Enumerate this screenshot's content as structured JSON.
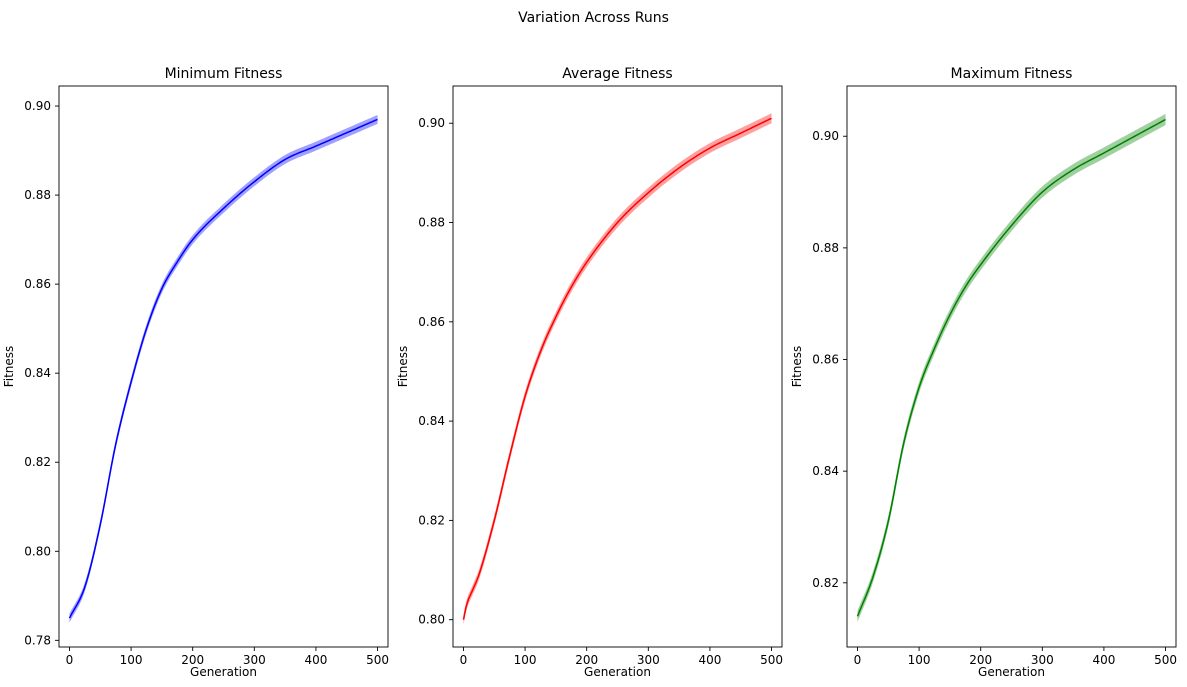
{
  "figure": {
    "suptitle": "Variation Across Runs"
  },
  "chart_data": [
    {
      "type": "line",
      "title": "Minimum Fitness",
      "xlabel": "Generation",
      "ylabel": "Fitness",
      "xlim": [
        -17,
        517
      ],
      "ylim": [
        0.7785,
        0.9045
      ],
      "xticks": [
        0,
        100,
        200,
        300,
        400,
        500
      ],
      "yticks": [
        0.78,
        0.8,
        0.82,
        0.84,
        0.86,
        0.88,
        0.9
      ],
      "ytick_labels": [
        "0.78",
        "0.80",
        "0.82",
        "0.84",
        "0.86",
        "0.88",
        "0.90"
      ],
      "line_color": "#0000ff",
      "band_color": "#8080ff",
      "band_halfwidth": 0.001,
      "series": [
        {
          "x": [
            0,
            25,
            50,
            75,
            100,
            125,
            150,
            175,
            200,
            250,
            300,
            350,
            400,
            450,
            500
          ],
          "y": [
            0.785,
            0.792,
            0.806,
            0.824,
            0.838,
            0.85,
            0.859,
            0.865,
            0.87,
            0.877,
            0.883,
            0.888,
            0.891,
            0.894,
            0.897
          ]
        }
      ]
    },
    {
      "type": "line",
      "title": "Average Fitness",
      "xlabel": "Generation",
      "ylabel": "Fitness",
      "xlim": [
        -17,
        517
      ],
      "ylim": [
        0.7945,
        0.9075
      ],
      "xticks": [
        0,
        100,
        200,
        300,
        400,
        500
      ],
      "yticks": [
        0.8,
        0.82,
        0.84,
        0.86,
        0.88,
        0.9
      ],
      "ytick_labels": [
        "0.80",
        "0.82",
        "0.84",
        "0.86",
        "0.88",
        "0.90"
      ],
      "line_color": "#ff0000",
      "band_color": "#ff8080",
      "band_halfwidth": 0.001,
      "series": [
        {
          "x": [
            0,
            5,
            15,
            25,
            50,
            75,
            100,
            125,
            150,
            175,
            200,
            250,
            300,
            350,
            400,
            450,
            500
          ],
          "y": [
            0.8,
            0.803,
            0.806,
            0.809,
            0.82,
            0.833,
            0.845,
            0.854,
            0.861,
            0.867,
            0.872,
            0.88,
            0.886,
            0.891,
            0.895,
            0.898,
            0.901
          ]
        }
      ]
    },
    {
      "type": "line",
      "title": "Maximum Fitness",
      "xlabel": "Generation",
      "ylabel": "Fitness",
      "xlim": [
        -17,
        517
      ],
      "ylim": [
        0.8085,
        0.909
      ],
      "xticks": [
        0,
        100,
        200,
        300,
        400,
        500
      ],
      "yticks": [
        0.82,
        0.84,
        0.86,
        0.88,
        0.9
      ],
      "ytick_labels": [
        "0.82",
        "0.84",
        "0.86",
        "0.88",
        "0.90"
      ],
      "line_color": "#008000",
      "band_color": "#80c080",
      "band_halfwidth": 0.001,
      "series": [
        {
          "x": [
            0,
            25,
            50,
            75,
            100,
            125,
            150,
            175,
            200,
            250,
            300,
            350,
            400,
            450,
            500
          ],
          "y": [
            0.814,
            0.821,
            0.831,
            0.845,
            0.855,
            0.862,
            0.868,
            0.873,
            0.877,
            0.884,
            0.89,
            0.894,
            0.897,
            0.9,
            0.903
          ]
        }
      ]
    }
  ]
}
